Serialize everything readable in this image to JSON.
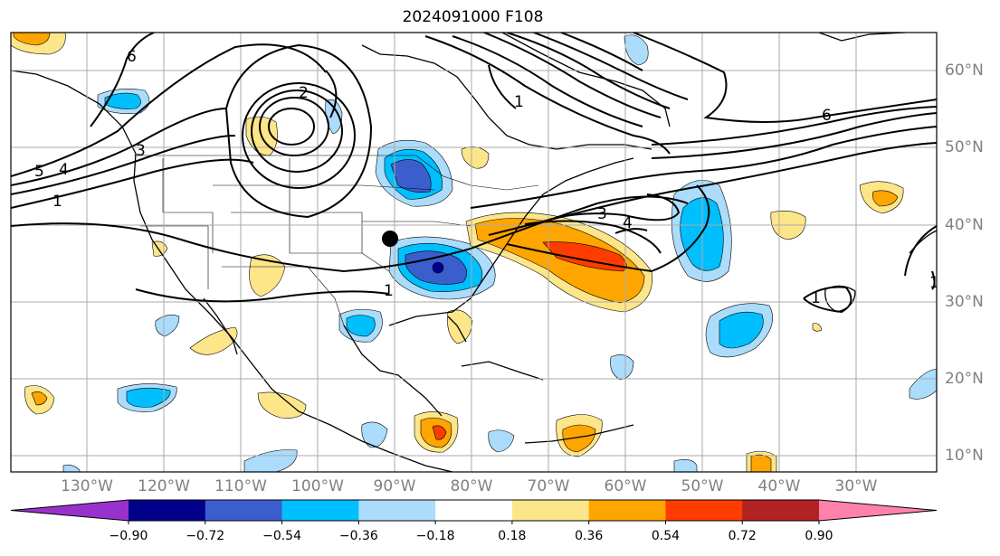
{
  "title": "2024091000 F108",
  "lat_labels": [
    "60°N",
    "50°N",
    "40°N",
    "30°N",
    "20°N",
    "10°N"
  ],
  "lon_labels": [
    "130°W",
    "120°W",
    "110°W",
    "100°W",
    "90°W",
    "80°W",
    "70°W",
    "60°W",
    "50°W",
    "40°W",
    "30°W"
  ],
  "colorbar": {
    "ticks": [
      "−0.90",
      "−0.72",
      "−0.54",
      "−0.36",
      "−0.18",
      "0.18",
      "0.36",
      "0.54",
      "0.72",
      "0.90"
    ],
    "colors": [
      "#9932cc",
      "#00008b",
      "#3a5fcd",
      "#00bfff",
      "#abdcfb",
      "#ffffff",
      "#fde68a",
      "#ffa500",
      "#ff3c00",
      "#b22222",
      "#ff82ab"
    ]
  },
  "contour_labels": [
    "6",
    "5",
    "4",
    "1",
    "3",
    "2",
    "3",
    "4",
    "1",
    "6",
    "1",
    "1",
    "1"
  ],
  "features": {
    "marker": "black-dot-marker"
  }
}
